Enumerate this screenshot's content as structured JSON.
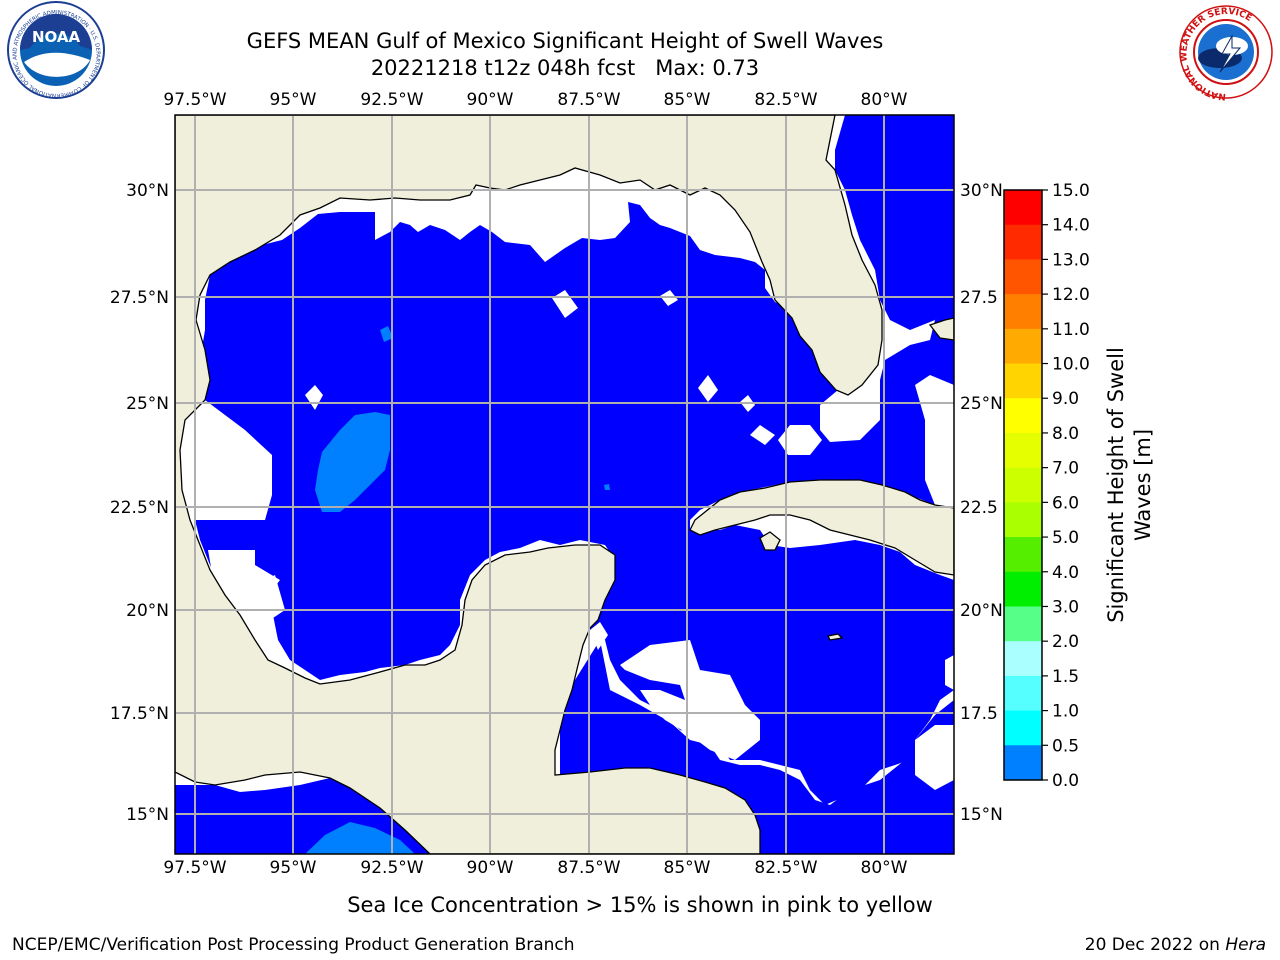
{
  "title": {
    "line1": "GEFS MEAN Gulf of Mexico Significant Height of Swell Waves",
    "line2": "20221218 t12z 048h fcst   Max: 0.73"
  },
  "logos": {
    "left": {
      "text": "NOAA",
      "ring_text": "NATIONAL OCEANIC AND ATMOSPHERIC ADMINISTRATION · U.S. DEPARTMENT OF COMMERCE"
    },
    "right": {
      "ring_text": "NATIONAL WEATHER SERVICE"
    }
  },
  "map": {
    "lon_labels": [
      "97.5°W",
      "95°W",
      "92.5°W",
      "90°W",
      "87.5°W",
      "85°W",
      "82.5°W",
      "80°W"
    ],
    "lat_labels_left": [
      "30°N",
      "27.5°N",
      "25°N",
      "22.5°N",
      "20°N",
      "17.5°N",
      "15°N"
    ],
    "lat_labels_right": [
      "30°N",
      "27.5",
      "25°N",
      "22.5",
      "20°N",
      "17.5",
      "15°N"
    ],
    "colors": {
      "land": "#efefdc",
      "ocean": "#0000ff",
      "swell_05_10": "#0080ff",
      "no_data": "#ffffff",
      "grid": "#b0b0b0"
    }
  },
  "colorbar": {
    "label_line1": "Significant Height of Swell",
    "label_line2": "Waves [m]",
    "ticks": [
      "15.0",
      "14.0",
      "13.0",
      "12.0",
      "11.0",
      "10.0",
      "9.0",
      "8.0",
      "7.0",
      "6.0",
      "5.0",
      "4.0",
      "3.0",
      "2.0",
      "1.5",
      "1.0",
      "0.5",
      "0.0"
    ],
    "colors_top_to_bottom": [
      "#ff0000",
      "#ff2a00",
      "#ff5500",
      "#ff7f00",
      "#ffaa00",
      "#ffd400",
      "#ffff00",
      "#e6ff00",
      "#ccff00",
      "#aaff00",
      "#55ee00",
      "#00ee00",
      "#55ff88",
      "#aaffff",
      "#55ffff",
      "#00ffff",
      "#0080ff",
      "#0000ff"
    ]
  },
  "note": "Sea Ice Concentration > 15% is shown in pink to yellow",
  "footer": {
    "left": "NCEP/EMC/Verification Post Processing Product Generation Branch",
    "right_date": "20 Dec 2022 on ",
    "right_host": "Hera"
  }
}
